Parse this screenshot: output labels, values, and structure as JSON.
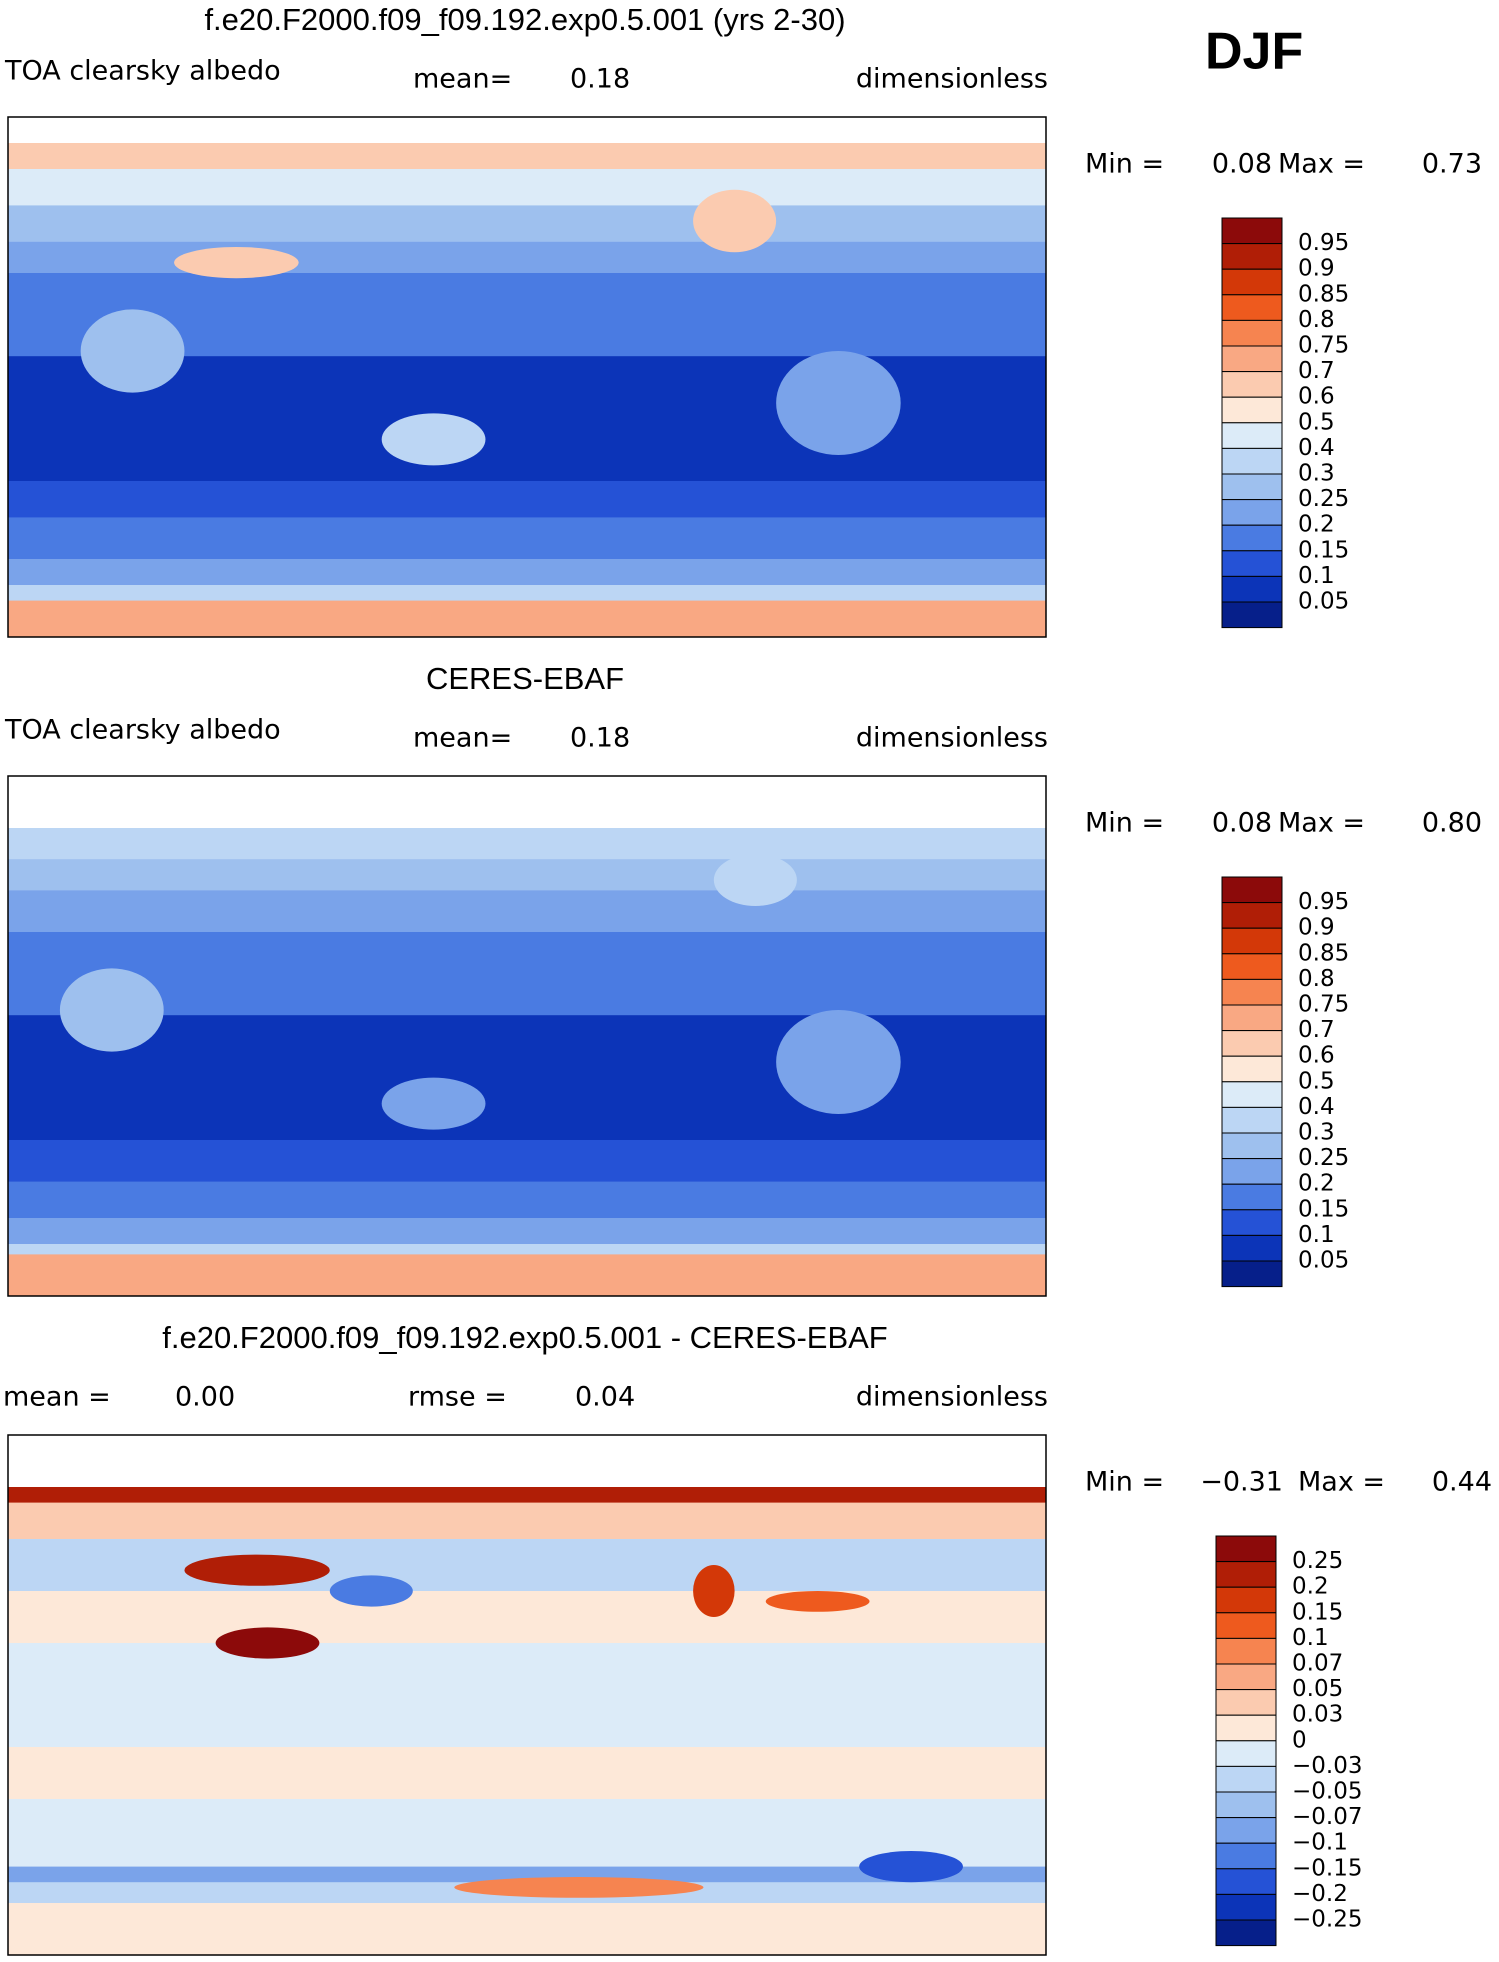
{
  "season": "DJF",
  "panels": [
    {
      "title": "f.e20.F2000.f09_f09.192.exp0.5.001 (yrs 2-30)",
      "variable": "TOA clearsky albedo",
      "stats": [
        {
          "label": "mean=",
          "value": "0.18"
        }
      ],
      "units": "dimensionless",
      "min_label": "Min =",
      "min": "0.08",
      "max_label": "Max =",
      "max": "0.73",
      "colorbar": {
        "labels": [
          "0.95",
          "0.9",
          "0.85",
          "0.8",
          "0.75",
          "0.7",
          "0.6",
          "0.5",
          "0.4",
          "0.3",
          "0.25",
          "0.2",
          "0.15",
          "0.1",
          "0.05"
        ],
        "colors": [
          "#8c0a0a",
          "#b01e06",
          "#d33808",
          "#ee5a1e",
          "#f68450",
          "#f9a883",
          "#fbcbb0",
          "#fde8d8",
          "#dcebf8",
          "#bcd6f4",
          "#9ec0ee",
          "#7aa3ea",
          "#4a7be2",
          "#2552d6",
          "#0c34b8",
          "#061f8a"
        ]
      }
    },
    {
      "title": "CERES-EBAF",
      "variable": "TOA clearsky albedo",
      "stats": [
        {
          "label": "mean=",
          "value": "0.18"
        }
      ],
      "units": "dimensionless",
      "min_label": "Min =",
      "min": "0.08",
      "max_label": "Max =",
      "max": "0.80",
      "colorbar": {
        "labels": [
          "0.95",
          "0.9",
          "0.85",
          "0.8",
          "0.75",
          "0.7",
          "0.6",
          "0.5",
          "0.4",
          "0.3",
          "0.25",
          "0.2",
          "0.15",
          "0.1",
          "0.05"
        ],
        "colors": [
          "#8c0a0a",
          "#b01e06",
          "#d33808",
          "#ee5a1e",
          "#f68450",
          "#f9a883",
          "#fbcbb0",
          "#fde8d8",
          "#dcebf8",
          "#bcd6f4",
          "#9ec0ee",
          "#7aa3ea",
          "#4a7be2",
          "#2552d6",
          "#0c34b8",
          "#061f8a"
        ]
      }
    },
    {
      "title": "f.e20.F2000.f09_f09.192.exp0.5.001 - CERES-EBAF",
      "variable": null,
      "stats": [
        {
          "label": "mean =",
          "value": "0.00"
        },
        {
          "label": "rmse =",
          "value": "0.04"
        }
      ],
      "units": "dimensionless",
      "min_label": "Min =",
      "min": "−0.31",
      "max_label": "Max =",
      "max": "0.44",
      "colorbar": {
        "labels": [
          "0.25",
          "0.2",
          "0.15",
          "0.1",
          "0.07",
          "0.05",
          "0.03",
          "0",
          "−0.03",
          "−0.05",
          "−0.07",
          "−0.1",
          "−0.15",
          "−0.2",
          "−0.25"
        ],
        "colors": [
          "#8c0a0a",
          "#b01e06",
          "#d33808",
          "#ee5a1e",
          "#f68450",
          "#f9a883",
          "#fbcbb0",
          "#fde8d8",
          "#dcebf8",
          "#bcd6f4",
          "#9ec0ee",
          "#7aa3ea",
          "#4a7be2",
          "#2552d6",
          "#0c34b8",
          "#061f8a"
        ]
      }
    }
  ]
}
